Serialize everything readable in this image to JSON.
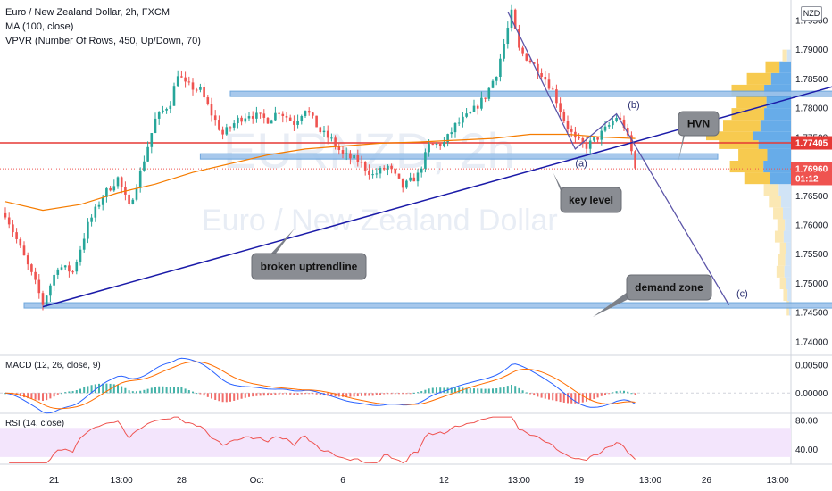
{
  "header": {
    "title": "Euro / New Zealand Dollar, 2h, FXCM",
    "ma_label": "MA (100, close)",
    "vpvr_label": "VPVR (Number Of Rows, 450, Up/Down, 70)",
    "currency_button": "NZD"
  },
  "watermark": {
    "symbol": "EURNZD, 2h",
    "name": "Euro / New Zealand Dollar"
  },
  "chart_data": {
    "type": "candlestick",
    "title": "Euro / New Zealand Dollar, 2h, FXCM",
    "price_axis": {
      "ticks": [
        "1.79500",
        "1.79000",
        "1.78500",
        "1.78000",
        "1.77500",
        "1.77000",
        "1.76500",
        "1.76000",
        "1.75500",
        "1.75000",
        "1.74500",
        "1.74000"
      ],
      "range": [
        1.738,
        1.7985
      ]
    },
    "time_axis": {
      "ticks": [
        "21",
        "13:00",
        "28",
        "Oct",
        "6",
        "12",
        "13:00",
        "19",
        "13:00",
        "26",
        "13:00"
      ],
      "bar_range": [
        0,
        182
      ]
    },
    "price_path": [
      [
        0,
        1.762
      ],
      [
        4,
        1.756
      ],
      [
        8,
        1.75
      ],
      [
        10,
        1.7465
      ],
      [
        14,
        1.753
      ],
      [
        18,
        1.752
      ],
      [
        22,
        1.76
      ],
      [
        26,
        1.765
      ],
      [
        30,
        1.768
      ],
      [
        33,
        1.763
      ],
      [
        36,
        1.769
      ],
      [
        40,
        1.778
      ],
      [
        44,
        1.781
      ],
      [
        46,
        1.786
      ],
      [
        48,
        1.784
      ],
      [
        52,
        1.783
      ],
      [
        55,
        1.779
      ],
      [
        58,
        1.7755
      ],
      [
        62,
        1.778
      ],
      [
        65,
        1.779
      ],
      [
        70,
        1.778
      ],
      [
        73,
        1.7795
      ],
      [
        77,
        1.7775
      ],
      [
        80,
        1.78
      ],
      [
        84,
        1.776
      ],
      [
        87,
        1.7745
      ],
      [
        90,
        1.772
      ],
      [
        94,
        1.771
      ],
      [
        98,
        1.7685
      ],
      [
        102,
        1.77
      ],
      [
        106,
        1.7665
      ],
      [
        110,
        1.7685
      ],
      [
        113,
        1.7735
      ],
      [
        117,
        1.774
      ],
      [
        120,
        1.777
      ],
      [
        124,
        1.779
      ],
      [
        128,
        1.782
      ],
      [
        131,
        1.786
      ],
      [
        133,
        1.791
      ],
      [
        135,
        1.7962
      ],
      [
        137,
        1.79
      ],
      [
        140,
        1.788
      ],
      [
        143,
        1.786
      ],
      [
        146,
        1.783
      ],
      [
        149,
        1.778
      ],
      [
        152,
        1.7745
      ],
      [
        155,
        1.7735
      ],
      [
        158,
        1.775
      ],
      [
        161,
        1.777
      ],
      [
        163,
        1.7785
      ],
      [
        165,
        1.777
      ],
      [
        167,
        1.7725
      ],
      [
        168,
        1.7696
      ]
    ],
    "ma_path": [
      [
        0,
        1.764
      ],
      [
        10,
        1.7625
      ],
      [
        20,
        1.7635
      ],
      [
        30,
        1.7655
      ],
      [
        40,
        1.767
      ],
      [
        50,
        1.769
      ],
      [
        60,
        1.7705
      ],
      [
        70,
        1.772
      ],
      [
        80,
        1.773
      ],
      [
        90,
        1.7735
      ],
      [
        100,
        1.774
      ],
      [
        110,
        1.7742
      ],
      [
        120,
        1.7745
      ],
      [
        130,
        1.7748
      ],
      [
        140,
        1.7755
      ],
      [
        150,
        1.7755
      ],
      [
        160,
        1.775
      ],
      [
        168,
        1.7748
      ]
    ],
    "zones": [
      {
        "name": "resistance-zone",
        "bars": [
          60,
          228
        ],
        "price": [
          1.7823,
          1.7829
        ]
      },
      {
        "name": "key-level-zone",
        "bars": [
          52,
          190
        ],
        "price": [
          1.7716,
          1.7722
        ]
      },
      {
        "name": "demand-zone-box",
        "bars": [
          5,
          225
        ],
        "price": [
          1.7461,
          1.7467
        ]
      }
    ],
    "horizontal_line": {
      "price": 1.77405,
      "color": "#e53935"
    },
    "current_price_line": {
      "price": 1.7696,
      "color": "#ef5350"
    },
    "trendline": {
      "from": [
        10,
        1.746
      ],
      "to": [
        232,
        1.7857
      ],
      "color": "#1a1aa8"
    },
    "projection": [
      [
        134,
        1.7965
      ],
      [
        152,
        1.773
      ],
      [
        163,
        1.779
      ],
      [
        193,
        1.7463
      ]
    ],
    "wave_labels": [
      {
        "text": "(a)",
        "bar": 152,
        "price": 1.77
      },
      {
        "text": "(b)",
        "bar": 166,
        "price": 1.78
      },
      {
        "text": "(c)",
        "bar": 195,
        "price": 1.7477
      }
    ],
    "price_labels": [
      {
        "text": "1.77405",
        "price": 1.77405,
        "color": "#e53935"
      },
      {
        "text": "1.76960",
        "price": 1.7696,
        "color": "#ef5350"
      },
      {
        "text": "01:12",
        "price": 1.76795,
        "color": "#ef5350"
      }
    ],
    "annotations": [
      {
        "text": "HVN",
        "pointer_bar": 232,
        "pointer_price": 1.7745
      },
      {
        "text": "key level",
        "pointer_bar": 190,
        "pointer_price": 1.772
      },
      {
        "text": "broken uptrendline",
        "pointer_bar": 100,
        "pointer_price": 1.762
      },
      {
        "text": "demand zone",
        "pointer_bar": 203,
        "pointer_price": 1.7455
      }
    ],
    "vpvr": {
      "price_range": [
        1.744,
        1.789
      ],
      "profile": [
        [
          1.7445,
          0.05
        ],
        [
          1.747,
          0.09
        ],
        [
          1.749,
          0.13
        ],
        [
          1.751,
          0.17
        ],
        [
          1.753,
          0.15
        ],
        [
          1.755,
          0.13
        ],
        [
          1.757,
          0.19
        ],
        [
          1.759,
          0.16
        ],
        [
          1.761,
          0.21
        ],
        [
          1.763,
          0.26
        ],
        [
          1.765,
          0.32
        ],
        [
          1.767,
          0.55
        ],
        [
          1.769,
          0.72
        ],
        [
          1.771,
          0.62
        ],
        [
          1.773,
          0.85
        ],
        [
          1.7745,
          1.0
        ],
        [
          1.776,
          0.8
        ],
        [
          1.778,
          0.7
        ],
        [
          1.78,
          0.64
        ],
        [
          1.782,
          0.7
        ],
        [
          1.784,
          0.52
        ],
        [
          1.786,
          0.3
        ],
        [
          1.788,
          0.1
        ]
      ]
    },
    "macd": {
      "label": "MACD (12, 26, close, 9)",
      "ticks": [
        "0.00500",
        "0.00000"
      ],
      "range": [
        -0.0035,
        0.0068
      ]
    },
    "rsi": {
      "label": "RSI (14, close)",
      "ticks": [
        "80.00",
        "40.00"
      ],
      "range": [
        20,
        90
      ],
      "band": [
        30,
        70
      ]
    }
  }
}
